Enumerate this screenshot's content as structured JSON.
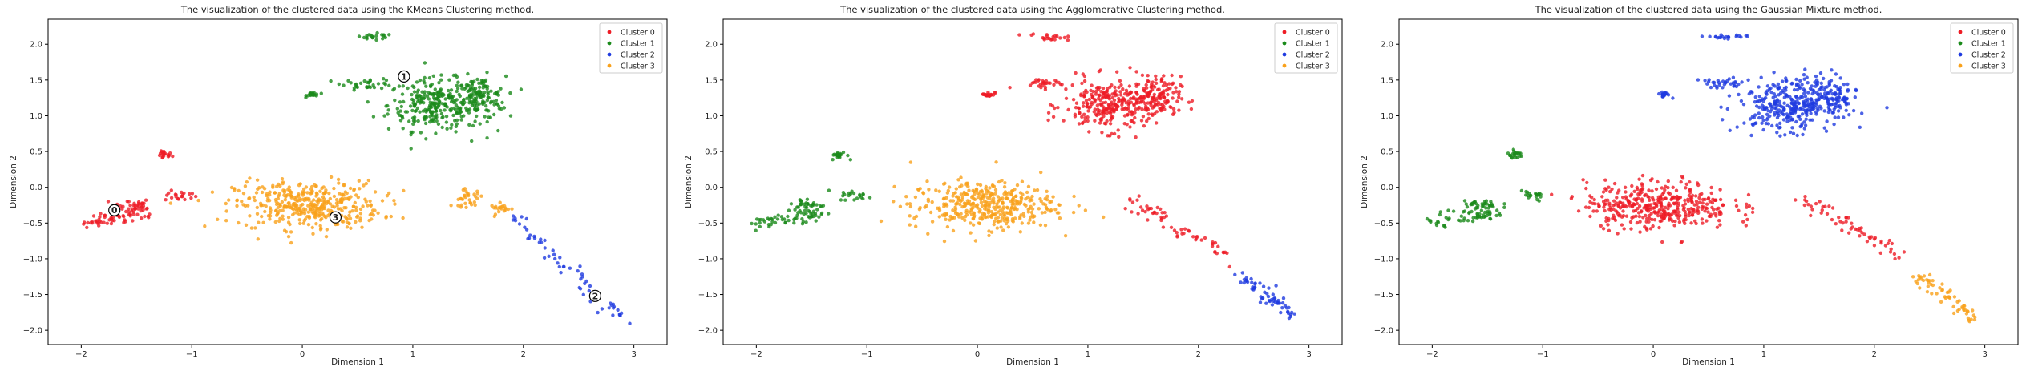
{
  "chart_data": [
    {
      "type": "scatter",
      "title": "The visualization of the clustered data using the KMeans Clustering method.",
      "xlabel": "Dimension 1",
      "ylabel": "Dimension 2",
      "xlim": [
        -2.3,
        3.3
      ],
      "ylim": [
        -2.2,
        2.35
      ],
      "xticks": [
        "−2",
        "−1",
        "0",
        "1",
        "2",
        "3"
      ],
      "yticks": [
        "2.0",
        "1.5",
        "1.0",
        "0.5",
        "0.0",
        "−0.5",
        "−1.0",
        "−1.5",
        "−2.0"
      ],
      "legend_position": "top-right",
      "series": [
        {
          "name": "Cluster 0",
          "color": "#ee1c25",
          "marker": "0",
          "centroid": [
            -1.7,
            -0.32
          ],
          "groups": [
            [
              "arc",
              -2.0,
              -0.5,
              -1.4,
              -0.35
            ],
            [
              "blob",
              -1.25,
              0.45,
              0.06,
              0.05
            ],
            [
              "blob",
              -1.1,
              -0.12,
              0.12,
              0.06
            ],
            [
              "blob",
              -1.55,
              -0.25,
              0.15,
              0.08
            ]
          ]
        },
        {
          "name": "Cluster 1",
          "color": "#1a8a1a",
          "marker": "1",
          "centroid": [
            0.92,
            1.55
          ],
          "groups": [
            [
              "blob",
              1.2,
              1.15,
              0.35,
              0.3
            ],
            [
              "blob",
              0.65,
              2.1,
              0.15,
              0.04
            ],
            [
              "blob",
              0.1,
              1.3,
              0.05,
              0.03
            ],
            [
              "blob",
              0.6,
              1.45,
              0.2,
              0.06
            ],
            [
              "blob",
              1.6,
              1.25,
              0.2,
              0.25
            ]
          ]
        },
        {
          "name": "Cluster 2",
          "color": "#1f3be0",
          "marker": "2",
          "centroid": [
            2.65,
            -1.52
          ],
          "groups": [
            [
              "arc",
              1.9,
              -0.4,
              2.9,
              -1.85
            ]
          ]
        },
        {
          "name": "Cluster 3",
          "color": "#f9a11b",
          "marker": "3",
          "centroid": [
            0.3,
            -0.42
          ],
          "groups": [
            [
              "blob",
              0.05,
              -0.25,
              0.55,
              0.28
            ],
            [
              "blob",
              1.5,
              -0.15,
              0.12,
              0.1
            ],
            [
              "blob",
              1.8,
              -0.3,
              0.08,
              0.06
            ]
          ]
        }
      ]
    },
    {
      "type": "scatter",
      "title": "The visualization of the clustered data using the Agglomerative Clustering method.",
      "xlabel": "Dimension 1",
      "ylabel": "Dimension 2",
      "xlim": [
        -2.3,
        3.3
      ],
      "ylim": [
        -2.2,
        2.35
      ],
      "xticks": [
        "−2",
        "−1",
        "0",
        "1",
        "2",
        "3"
      ],
      "yticks": [
        "2.0",
        "1.5",
        "1.0",
        "0.5",
        "0.0",
        "−0.5",
        "−1.0",
        "−1.5",
        "−2.0"
      ],
      "legend_position": "top-right",
      "series": [
        {
          "name": "Cluster 0",
          "color": "#ee1c25",
          "groups": [
            [
              "blob",
              1.2,
              1.15,
              0.35,
              0.3
            ],
            [
              "blob",
              0.65,
              2.1,
              0.15,
              0.04
            ],
            [
              "blob",
              0.1,
              1.3,
              0.05,
              0.03
            ],
            [
              "blob",
              0.6,
              1.45,
              0.2,
              0.06
            ],
            [
              "blob",
              1.6,
              1.25,
              0.2,
              0.25
            ],
            [
              "arc",
              1.35,
              -0.15,
              2.3,
              -1.0
            ]
          ]
        },
        {
          "name": "Cluster 1",
          "color": "#1a8a1a",
          "groups": [
            [
              "arc",
              -2.0,
              -0.5,
              -1.4,
              -0.35
            ],
            [
              "blob",
              -1.25,
              0.45,
              0.06,
              0.05
            ],
            [
              "blob",
              -1.1,
              -0.12,
              0.12,
              0.06
            ],
            [
              "blob",
              -1.55,
              -0.25,
              0.15,
              0.08
            ]
          ]
        },
        {
          "name": "Cluster 2",
          "color": "#1f3be0",
          "groups": [
            [
              "arc",
              2.4,
              -1.25,
              2.9,
              -1.85
            ]
          ]
        },
        {
          "name": "Cluster 3",
          "color": "#f9a11b",
          "groups": [
            [
              "blob",
              0.05,
              -0.25,
              0.55,
              0.28
            ]
          ]
        }
      ]
    },
    {
      "type": "scatter",
      "title": "The visualization of the clustered data using the Gaussian Mixture method.",
      "xlabel": "Dimension 1",
      "ylabel": "Dimension 2",
      "xlim": [
        -2.3,
        3.3
      ],
      "ylim": [
        -2.2,
        2.35
      ],
      "xticks": [
        "−2",
        "−1",
        "0",
        "1",
        "2",
        "3"
      ],
      "yticks": [
        "2.0",
        "1.5",
        "1.0",
        "0.5",
        "0.0",
        "−0.5",
        "−1.0",
        "−1.5",
        "−2.0"
      ],
      "legend_position": "top-right",
      "series": [
        {
          "name": "Cluster 0",
          "color": "#ee1c25",
          "groups": [
            [
              "blob",
              0.05,
              -0.25,
              0.55,
              0.28
            ],
            [
              "arc",
              1.35,
              -0.15,
              2.3,
              -1.0
            ]
          ]
        },
        {
          "name": "Cluster 1",
          "color": "#1a8a1a",
          "groups": [
            [
              "arc",
              -2.0,
              -0.5,
              -1.4,
              -0.35
            ],
            [
              "blob",
              -1.25,
              0.45,
              0.06,
              0.05
            ],
            [
              "blob",
              -1.1,
              -0.12,
              0.12,
              0.06
            ],
            [
              "blob",
              -1.55,
              -0.25,
              0.15,
              0.08
            ]
          ]
        },
        {
          "name": "Cluster 2",
          "color": "#1f3be0",
          "groups": [
            [
              "blob",
              1.2,
              1.15,
              0.35,
              0.3
            ],
            [
              "blob",
              0.65,
              2.1,
              0.15,
              0.04
            ],
            [
              "blob",
              0.1,
              1.3,
              0.05,
              0.03
            ],
            [
              "blob",
              0.6,
              1.45,
              0.2,
              0.06
            ],
            [
              "blob",
              1.6,
              1.25,
              0.2,
              0.25
            ]
          ]
        },
        {
          "name": "Cluster 3",
          "color": "#f9a11b",
          "groups": [
            [
              "arc",
              2.4,
              -1.25,
              2.9,
              -1.85
            ]
          ]
        }
      ]
    }
  ]
}
